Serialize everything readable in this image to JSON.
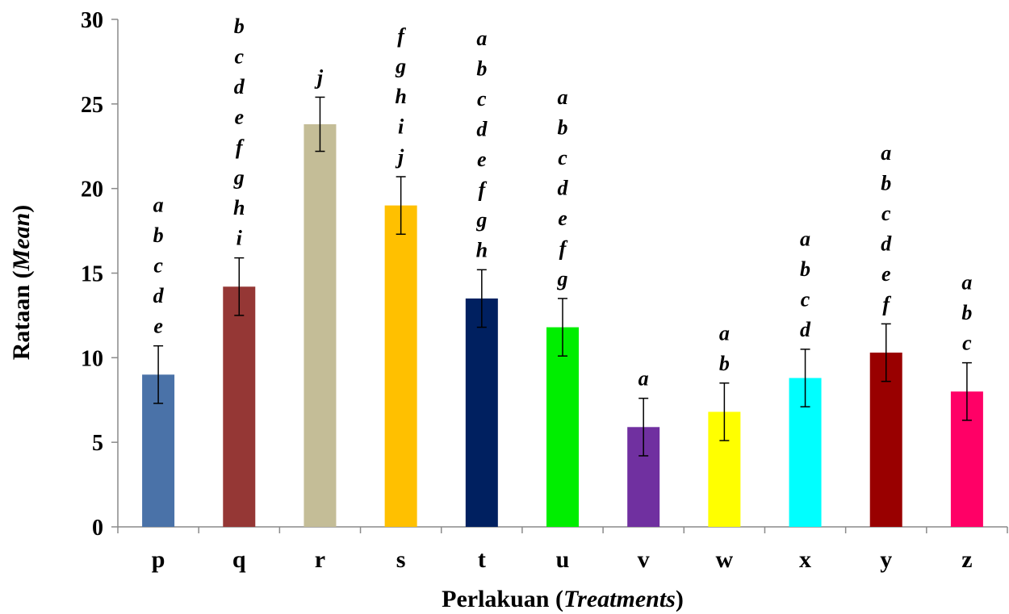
{
  "chart_data": {
    "type": "bar",
    "categories": [
      "p",
      "q",
      "r",
      "s",
      "t",
      "u",
      "v",
      "w",
      "x",
      "y",
      "z"
    ],
    "values": [
      9.0,
      14.2,
      23.8,
      19.0,
      13.5,
      11.8,
      5.9,
      6.8,
      8.8,
      10.3,
      8.0
    ],
    "errors": [
      1.7,
      1.7,
      1.6,
      1.7,
      1.7,
      1.7,
      1.7,
      1.7,
      1.7,
      1.7,
      1.7
    ],
    "significance_letters": [
      [
        "a",
        "b",
        "c",
        "d",
        "e"
      ],
      [
        "b",
        "c",
        "d",
        "e",
        "f",
        "g",
        "h",
        "i"
      ],
      [
        "j"
      ],
      [
        "f",
        "g",
        "h",
        "i",
        "j"
      ],
      [
        "a",
        "b",
        "c",
        "d",
        "e",
        "f",
        "g",
        "h"
      ],
      [
        "a",
        "b",
        "c",
        "d",
        "e",
        "f",
        "g"
      ],
      [
        "a"
      ],
      [
        "a",
        "b"
      ],
      [
        "a",
        "b",
        "c",
        "d"
      ],
      [
        "a",
        "b",
        "c",
        "d",
        "e",
        "f"
      ],
      [
        "a",
        "b",
        "c"
      ]
    ],
    "colors": [
      "#4A72A8",
      "#953735",
      "#C4BD97",
      "#FFC000",
      "#002060",
      "#00EE00",
      "#7030A0",
      "#FFFF00",
      "#00FFFF",
      "#990000",
      "#FF0066"
    ],
    "ylim": [
      0,
      30
    ],
    "yticks": [
      0,
      5,
      10,
      15,
      20,
      25,
      30
    ],
    "ylabel": {
      "main": "Rataan (",
      "italic": "Mean",
      "end": ")"
    },
    "xlabel": {
      "main": "Perlakuan (",
      "italic": "Treatments",
      "end": ")"
    },
    "grid": false,
    "legend": "none"
  }
}
